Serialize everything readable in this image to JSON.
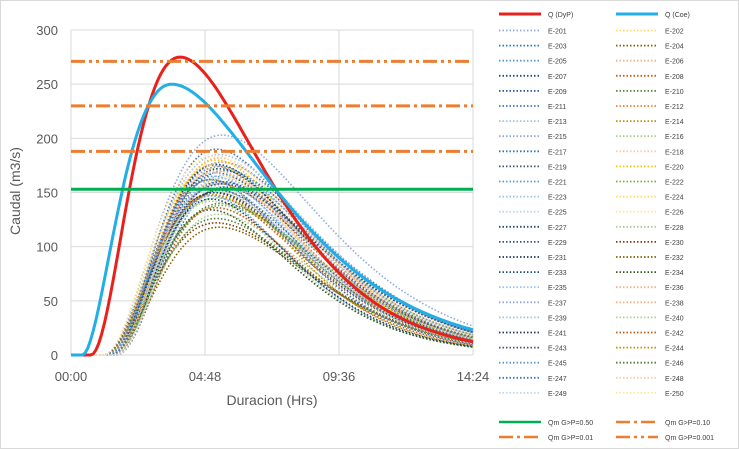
{
  "chart_data": {
    "type": "line",
    "title": "",
    "xlabel": "Duracion (Hrs)",
    "ylabel": "Caudal (m3/s)",
    "xlim": [
      0,
      14.4
    ],
    "ylim": [
      0,
      300
    ],
    "x_ticks": [
      {
        "value": 0,
        "label": "00:00"
      },
      {
        "value": 4.8,
        "label": "04:48"
      },
      {
        "value": 9.6,
        "label": "09:36"
      },
      {
        "value": 14.4,
        "label": "14:24"
      }
    ],
    "y_ticks": [
      0,
      50,
      100,
      150,
      200,
      250,
      300
    ],
    "grid": true,
    "legend_position": "right",
    "hydrographs": [
      {
        "name": "Q (DyP)",
        "color": "#e8211c",
        "style": "solid",
        "width": 3,
        "peak": 275,
        "t_peak": 3.9,
        "t_base": 0.7,
        "k_rise": 2.2,
        "k_fall": 1.7
      },
      {
        "name": "Q (Coe)",
        "color": "#22aee6",
        "style": "solid",
        "width": 3,
        "peak": 250,
        "t_peak": 3.6,
        "t_base": 0.4,
        "k_rise": 2.0,
        "k_fall": 1.25
      }
    ],
    "series": [
      {
        "name": "E-201",
        "color": "#8eaadb",
        "peak": 160,
        "t_peak": 5.3
      },
      {
        "name": "E-202",
        "color": "#ffd966",
        "peak": 172,
        "t_peak": 5.0
      },
      {
        "name": "E-203",
        "color": "#2e75b6",
        "peak": 178,
        "t_peak": 5.4
      },
      {
        "name": "E-204",
        "color": "#7f6000",
        "peak": 150,
        "t_peak": 5.2
      },
      {
        "name": "E-205",
        "color": "#5b9bd5",
        "peak": 165,
        "t_peak": 5.1
      },
      {
        "name": "E-206",
        "color": "#f4b183",
        "peak": 182,
        "t_peak": 5.3
      },
      {
        "name": "E-207",
        "color": "#1f4e79",
        "peak": 155,
        "t_peak": 5.5
      },
      {
        "name": "E-208",
        "color": "#c55a11",
        "peak": 148,
        "t_peak": 5.0
      },
      {
        "name": "E-209",
        "color": "#2f5597",
        "peak": 168,
        "t_peak": 5.2
      },
      {
        "name": "E-210",
        "color": "#548235",
        "peak": 140,
        "t_peak": 5.4
      },
      {
        "name": "E-211",
        "color": "#4472c4",
        "peak": 190,
        "t_peak": 5.2
      },
      {
        "name": "E-212",
        "color": "#ed7d31",
        "peak": 175,
        "t_peak": 5.1
      },
      {
        "name": "E-213",
        "color": "#9dc3e6",
        "peak": 158,
        "t_peak": 5.3
      },
      {
        "name": "E-214",
        "color": "#bf9000",
        "peak": 162,
        "t_peak": 5.0
      },
      {
        "name": "E-215",
        "color": "#8faadc",
        "peak": 203,
        "t_peak": 5.4
      },
      {
        "name": "E-216",
        "color": "#a9d18e",
        "peak": 145,
        "t_peak": 5.2
      },
      {
        "name": "E-217",
        "color": "#2e75b6",
        "peak": 170,
        "t_peak": 5.5
      },
      {
        "name": "E-218",
        "color": "#f8cbad",
        "peak": 168,
        "t_peak": 5.1
      },
      {
        "name": "E-219",
        "color": "#44546a",
        "peak": 152,
        "t_peak": 5.3
      },
      {
        "name": "E-220",
        "color": "#ffc000",
        "peak": 180,
        "t_peak": 5.2
      },
      {
        "name": "E-221",
        "color": "#5b9bd5",
        "peak": 147,
        "t_peak": 5.0
      },
      {
        "name": "E-222",
        "color": "#70ad47",
        "peak": 138,
        "t_peak": 5.4
      },
      {
        "name": "E-223",
        "color": "#9dc3e6",
        "peak": 185,
        "t_peak": 5.3
      },
      {
        "name": "E-224",
        "color": "#ffd966",
        "peak": 176,
        "t_peak": 5.1
      },
      {
        "name": "E-225",
        "color": "#bdd7ee",
        "peak": 156,
        "t_peak": 5.2
      },
      {
        "name": "E-226",
        "color": "#ffe699",
        "peak": 164,
        "t_peak": 5.5
      },
      {
        "name": "E-227",
        "color": "#1f4e79",
        "peak": 172,
        "t_peak": 5.3
      },
      {
        "name": "E-228",
        "color": "#a9d18e",
        "peak": 142,
        "t_peak": 5.0
      },
      {
        "name": "E-229",
        "color": "#2f5597",
        "peak": 160,
        "t_peak": 5.4
      },
      {
        "name": "E-230",
        "color": "#843c0c",
        "peak": 122,
        "t_peak": 5.2
      },
      {
        "name": "E-231",
        "color": "#203864",
        "peak": 150,
        "t_peak": 5.1
      },
      {
        "name": "E-232",
        "color": "#7f6000",
        "peak": 118,
        "t_peak": 5.3
      },
      {
        "name": "E-233",
        "color": "#1f4e79",
        "peak": 176,
        "t_peak": 5.2
      },
      {
        "name": "E-234",
        "color": "#385723",
        "peak": 134,
        "t_peak": 5.0
      },
      {
        "name": "E-235",
        "color": "#9dc3e6",
        "peak": 163,
        "t_peak": 5.4
      },
      {
        "name": "E-236",
        "color": "#f4b183",
        "peak": 158,
        "t_peak": 5.3
      },
      {
        "name": "E-237",
        "color": "#8eaadb",
        "peak": 154,
        "t_peak": 5.1
      },
      {
        "name": "E-238",
        "color": "#f4b183",
        "peak": 170,
        "t_peak": 5.2
      },
      {
        "name": "E-239",
        "color": "#9dc3e6",
        "peak": 166,
        "t_peak": 5.5
      },
      {
        "name": "E-240",
        "color": "#a9d18e",
        "peak": 130,
        "t_peak": 5.3
      },
      {
        "name": "E-241",
        "color": "#203864",
        "peak": 144,
        "t_peak": 5.0
      },
      {
        "name": "E-242",
        "color": "#c55a11",
        "peak": 136,
        "t_peak": 5.2
      },
      {
        "name": "E-243",
        "color": "#44546a",
        "peak": 158,
        "t_peak": 5.4
      },
      {
        "name": "E-244",
        "color": "#bf9000",
        "peak": 148,
        "t_peak": 5.1
      },
      {
        "name": "E-245",
        "color": "#5b9bd5",
        "peak": 174,
        "t_peak": 5.3
      },
      {
        "name": "E-246",
        "color": "#548235",
        "peak": 126,
        "t_peak": 5.2
      },
      {
        "name": "E-247",
        "color": "#4472c4",
        "peak": 162,
        "t_peak": 5.0
      },
      {
        "name": "E-248",
        "color": "#f8cbad",
        "peak": 178,
        "t_peak": 5.4
      },
      {
        "name": "E-249",
        "color": "#bdd7ee",
        "peak": 150,
        "t_peak": 5.3
      },
      {
        "name": "E-250",
        "color": "#ffe699",
        "peak": 184,
        "t_peak": 5.1
      }
    ],
    "thresholds": [
      {
        "name": "Qm G>P=0.50",
        "value": 153,
        "color": "#00b050",
        "style": "solid"
      },
      {
        "name": "Qm G>P=0.10",
        "value": 230,
        "color": "#ed7d31",
        "style": "dashdot"
      },
      {
        "name": "Qm G>P=0.01",
        "value": 188,
        "color": "#ed7d31",
        "style": "dashdot"
      },
      {
        "name": "Qm G>P=0.001",
        "value": 271,
        "color": "#ed7d31",
        "style": "dashdotdot"
      }
    ]
  }
}
